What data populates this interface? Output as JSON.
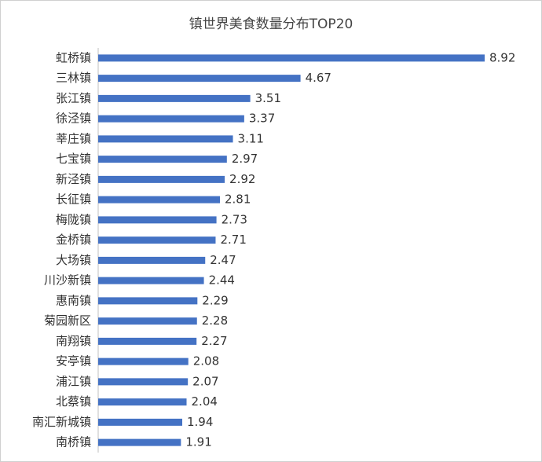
{
  "chart_data": {
    "type": "bar",
    "orientation": "horizontal",
    "title": "镇世界美食数量分布TOP20",
    "categories": [
      "虹桥镇",
      "三林镇",
      "张江镇",
      "徐泾镇",
      "莘庄镇",
      "七宝镇",
      "新泾镇",
      "长征镇",
      "梅陇镇",
      "金桥镇",
      "大场镇",
      "川沙新镇",
      "惠南镇",
      "菊园新区",
      "南翔镇",
      "安亭镇",
      "浦江镇",
      "北蔡镇",
      "南汇新城镇",
      "南桥镇"
    ],
    "values": [
      8.92,
      4.67,
      3.51,
      3.37,
      3.11,
      2.97,
      2.92,
      2.81,
      2.73,
      2.71,
      2.47,
      2.44,
      2.29,
      2.28,
      2.27,
      2.08,
      2.07,
      2.04,
      1.94,
      1.91
    ],
    "color": "#4472c4"
  }
}
